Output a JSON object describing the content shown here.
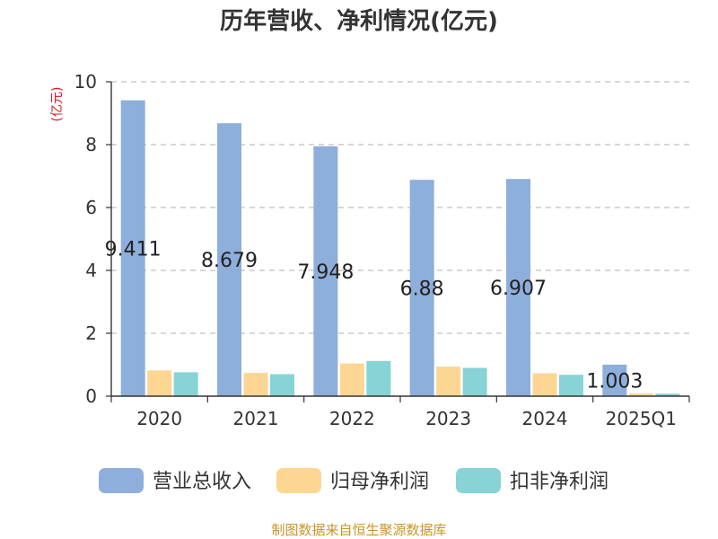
{
  "chart_data": {
    "type": "bar",
    "title": "历年营收、净利情况(亿元)",
    "unit_label": "(亿元)",
    "categories": [
      "2020",
      "2021",
      "2022",
      "2023",
      "2024",
      "2025Q1"
    ],
    "series": [
      {
        "name": "营业总收入",
        "color": "#8eaedb",
        "values": [
          9.411,
          8.679,
          7.948,
          6.88,
          6.907,
          1.003
        ],
        "labels": [
          "9.411",
          "8.679",
          "7.948",
          "6.88",
          "6.907",
          "1.003"
        ]
      },
      {
        "name": "归母净利润",
        "color": "#fed694",
        "values": [
          0.82,
          0.74,
          1.04,
          0.94,
          0.73,
          0.09
        ]
      },
      {
        "name": "扣非净利润",
        "color": "#87d3d6",
        "values": [
          0.76,
          0.7,
          1.12,
          0.9,
          0.68,
          0.08
        ]
      }
    ],
    "yticks": [
      "0",
      "2",
      "4",
      "6",
      "8",
      "10"
    ],
    "ylim": [
      0,
      10
    ],
    "grid": true,
    "legend_position": "bottom"
  },
  "source": "制图数据来自恒生聚源数据库"
}
